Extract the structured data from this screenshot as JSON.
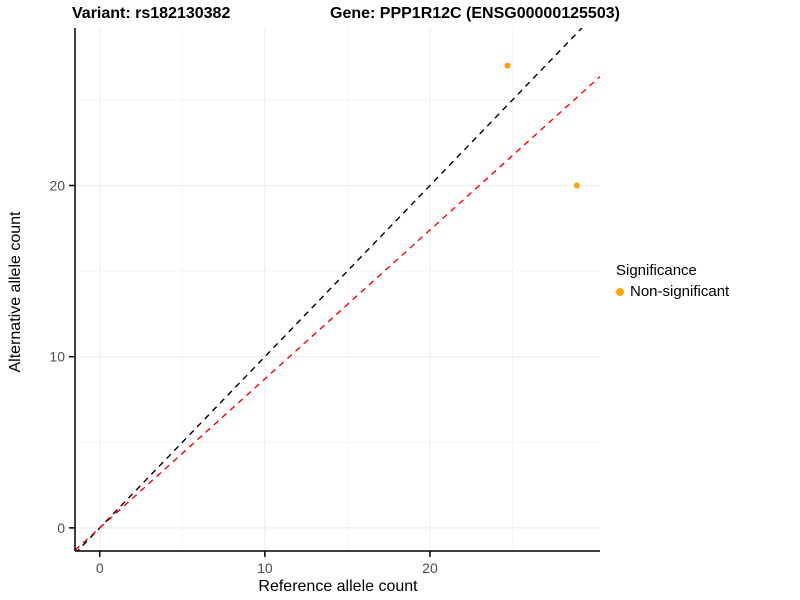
{
  "chart_data": {
    "type": "scatter",
    "title_left": "Variant: rs182130382",
    "title_right": "Gene: PPP1R12C (ENSG00000125503)",
    "xlabel": "Reference allele count",
    "ylabel": "Alternative allele count",
    "xlim": [
      -1.5,
      30.3
    ],
    "ylim": [
      -1.35,
      29.2
    ],
    "xticks": [
      0,
      10,
      20
    ],
    "yticks": [
      0,
      10,
      20
    ],
    "xticks_minor": [
      5,
      15,
      25
    ],
    "yticks_minor": [
      5,
      15,
      25
    ],
    "grid": true,
    "legend_position": "right",
    "points": [
      {
        "x": 24.7,
        "y": 27,
        "series": "Non-significant"
      },
      {
        "x": 28.9,
        "y": 20,
        "series": "Non-significant"
      }
    ],
    "lines": [
      {
        "name": "identity-line",
        "slope": 1,
        "intercept": 0,
        "color": "#000000",
        "dashed": true
      },
      {
        "name": "expected-line",
        "slope": 0.87,
        "intercept": 0,
        "color": "#FF0000",
        "dashed": true
      }
    ],
    "legend": {
      "title": "Significance",
      "entries": [
        {
          "label": "Non-significant",
          "color": "#FFA500"
        }
      ]
    },
    "colors": {
      "point": "#FFA500",
      "axis": "#000000",
      "tick_label": "#4D4D4D",
      "grid_major": "#EDEDED",
      "grid_minor": "#F6F6F6"
    }
  }
}
